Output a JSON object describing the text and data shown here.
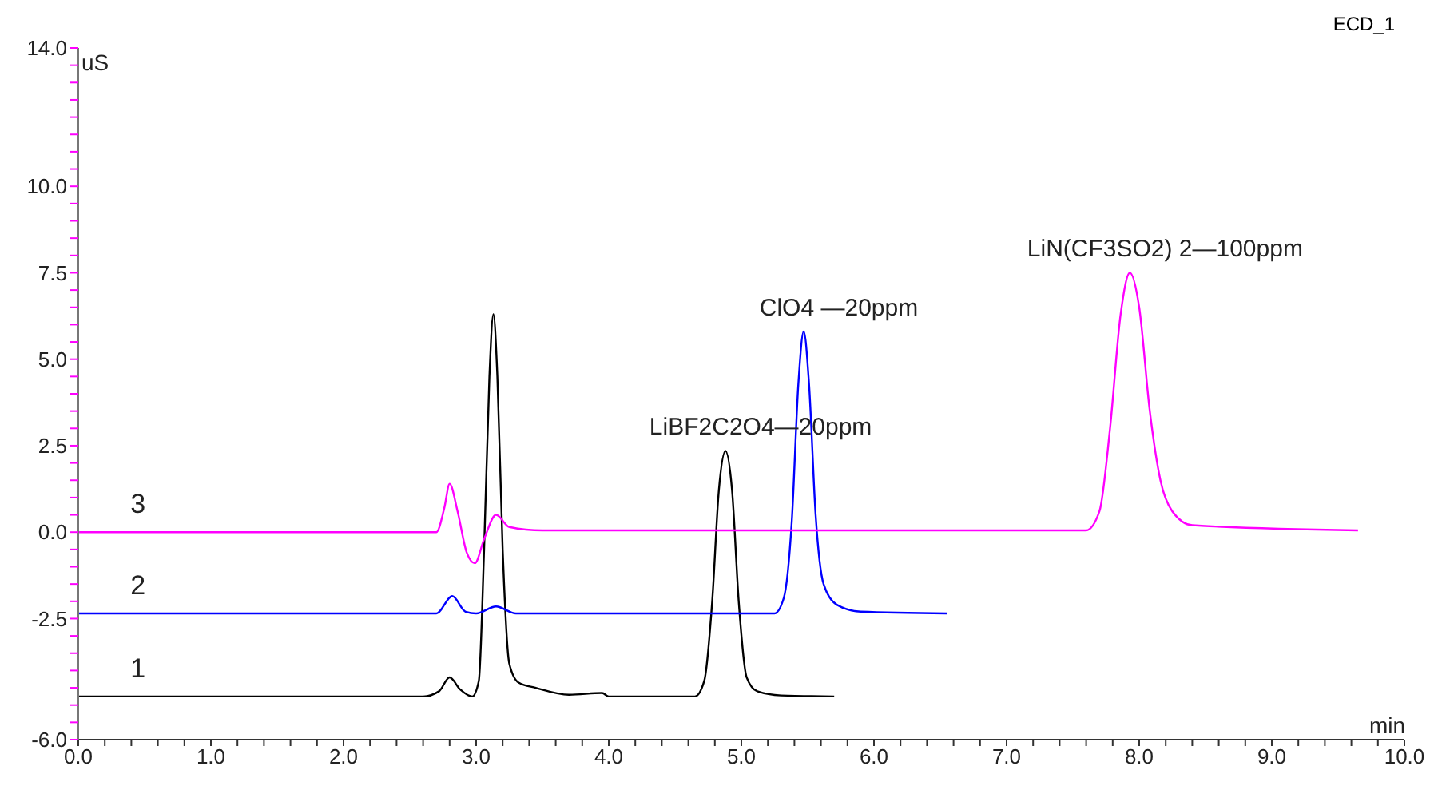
{
  "chart_data": {
    "type": "line",
    "title": "ECD_1",
    "xlabel": "min",
    "ylabel": "uS",
    "xlim": [
      0,
      10
    ],
    "ylim": [
      -6,
      14
    ],
    "xticks": [
      {
        "value": 0,
        "label": "0.0"
      },
      {
        "value": 0.2,
        "label": null
      },
      {
        "value": 0.4,
        "label": null
      },
      {
        "value": 0.6,
        "label": null
      },
      {
        "value": 0.8,
        "label": null
      },
      {
        "value": 1,
        "label": "1.0"
      },
      {
        "value": 1.2,
        "label": null
      },
      {
        "value": 1.4,
        "label": null
      },
      {
        "value": 1.6,
        "label": null
      },
      {
        "value": 1.8,
        "label": null
      },
      {
        "value": 2,
        "label": "2.0"
      },
      {
        "value": 2.2,
        "label": null
      },
      {
        "value": 2.4,
        "label": null
      },
      {
        "value": 2.6,
        "label": null
      },
      {
        "value": 2.8,
        "label": null
      },
      {
        "value": 3,
        "label": "3.0"
      },
      {
        "value": 3.2,
        "label": null
      },
      {
        "value": 3.4,
        "label": null
      },
      {
        "value": 3.6,
        "label": null
      },
      {
        "value": 3.8,
        "label": null
      },
      {
        "value": 4,
        "label": "4.0"
      },
      {
        "value": 4.2,
        "label": null
      },
      {
        "value": 4.4,
        "label": null
      },
      {
        "value": 4.6,
        "label": null
      },
      {
        "value": 4.8,
        "label": null
      },
      {
        "value": 5,
        "label": "5.0"
      },
      {
        "value": 5.2,
        "label": null
      },
      {
        "value": 5.4,
        "label": null
      },
      {
        "value": 5.6,
        "label": null
      },
      {
        "value": 5.8,
        "label": null
      },
      {
        "value": 6,
        "label": "6.0"
      },
      {
        "value": 6.2,
        "label": null
      },
      {
        "value": 6.4,
        "label": null
      },
      {
        "value": 6.6,
        "label": null
      },
      {
        "value": 6.8,
        "label": null
      },
      {
        "value": 7,
        "label": "7.0"
      },
      {
        "value": 7.2,
        "label": null
      },
      {
        "value": 7.4,
        "label": null
      },
      {
        "value": 7.6,
        "label": null
      },
      {
        "value": 7.8,
        "label": null
      },
      {
        "value": 8,
        "label": "8.0"
      },
      {
        "value": 8.2,
        "label": null
      },
      {
        "value": 8.4,
        "label": null
      },
      {
        "value": 8.6,
        "label": null
      },
      {
        "value": 8.8,
        "label": null
      },
      {
        "value": 9,
        "label": "9.0"
      },
      {
        "value": 9.2,
        "label": null
      },
      {
        "value": 9.4,
        "label": null
      },
      {
        "value": 9.6,
        "label": null
      },
      {
        "value": 9.8,
        "label": null
      },
      {
        "value": 10,
        "label": "10.0"
      }
    ],
    "yticks": [
      {
        "value": -6,
        "label": "-6.0"
      },
      {
        "value": -5.5,
        "label": null
      },
      {
        "value": -5,
        "label": null
      },
      {
        "value": -4.5,
        "label": null
      },
      {
        "value": -4,
        "label": null
      },
      {
        "value": -3.5,
        "label": null
      },
      {
        "value": -3,
        "label": null
      },
      {
        "value": -2.5,
        "label": "-2.5"
      },
      {
        "value": -2,
        "label": null
      },
      {
        "value": -1.5,
        "label": null
      },
      {
        "value": -1,
        "label": null
      },
      {
        "value": -0.5,
        "label": null
      },
      {
        "value": 0,
        "label": "0.0"
      },
      {
        "value": 0.5,
        "label": null
      },
      {
        "value": 1,
        "label": null
      },
      {
        "value": 1.5,
        "label": null
      },
      {
        "value": 2,
        "label": null
      },
      {
        "value": 2.5,
        "label": "2.5"
      },
      {
        "value": 3,
        "label": null
      },
      {
        "value": 3.5,
        "label": null
      },
      {
        "value": 4,
        "label": null
      },
      {
        "value": 4.5,
        "label": null
      },
      {
        "value": 5,
        "label": "5.0"
      },
      {
        "value": 5.5,
        "label": null
      },
      {
        "value": 6,
        "label": null
      },
      {
        "value": 6.5,
        "label": null
      },
      {
        "value": 7,
        "label": null
      },
      {
        "value": 7.5,
        "label": "7.5"
      },
      {
        "value": 8,
        "label": null
      },
      {
        "value": 8.5,
        "label": null
      },
      {
        "value": 9,
        "label": null
      },
      {
        "value": 9.5,
        "label": null
      },
      {
        "value": 10,
        "label": "10.0"
      },
      {
        "value": 10.5,
        "label": null
      },
      {
        "value": 11,
        "label": null
      },
      {
        "value": 11.5,
        "label": null
      },
      {
        "value": 12,
        "label": null
      },
      {
        "value": 12.5,
        "label": null
      },
      {
        "value": 13,
        "label": null
      },
      {
        "value": 13.5,
        "label": null
      },
      {
        "value": 14,
        "label": "14.0"
      }
    ],
    "marker": "none",
    "line_style": "solid",
    "series": [
      {
        "name": "1",
        "color": "#000000",
        "x": [
          0,
          2.6,
          2.72,
          2.8,
          2.88,
          2.97,
          3.02,
          3.06,
          3.1,
          3.13,
          3.16,
          3.2,
          3.25,
          3.32,
          3.45,
          3.7,
          3.95,
          4.0,
          4.65,
          4.72,
          4.78,
          4.83,
          4.88,
          4.93,
          4.98,
          5.04,
          5.12,
          5.3,
          5.7
        ],
        "values": [
          -4.75,
          -4.75,
          -4.6,
          -4.2,
          -4.55,
          -4.75,
          -4.3,
          -0.5,
          4.5,
          6.3,
          4.5,
          -0.5,
          -3.8,
          -4.35,
          -4.5,
          -4.7,
          -4.65,
          -4.75,
          -4.75,
          -4.3,
          -2.0,
          1.2,
          2.35,
          1.2,
          -2.0,
          -4.2,
          -4.6,
          -4.72,
          -4.75
        ]
      },
      {
        "name": "2",
        "color": "#0000ff",
        "x": [
          0,
          2.7,
          2.82,
          2.92,
          3.0,
          3.15,
          3.3,
          5.25,
          5.32,
          5.38,
          5.43,
          5.47,
          5.51,
          5.56,
          5.62,
          5.72,
          5.9,
          6.55
        ],
        "values": [
          -2.35,
          -2.35,
          -1.85,
          -2.3,
          -2.35,
          -2.15,
          -2.35,
          -2.35,
          -1.9,
          0.3,
          4.3,
          5.8,
          4.3,
          0.5,
          -1.5,
          -2.1,
          -2.3,
          -2.35
        ]
      },
      {
        "name": "3",
        "color": "#ff00ff",
        "x": [
          0,
          2.7,
          2.76,
          2.8,
          2.86,
          2.93,
          2.99,
          3.06,
          3.15,
          3.25,
          3.5,
          7.6,
          7.7,
          7.78,
          7.86,
          7.93,
          8.0,
          8.08,
          8.16,
          8.25,
          8.4,
          9.65
        ],
        "values": [
          0.0,
          0.0,
          0.7,
          1.4,
          0.6,
          -0.6,
          -0.9,
          -0.2,
          0.5,
          0.15,
          0.05,
          0.05,
          0.6,
          3.0,
          6.3,
          7.5,
          6.5,
          3.5,
          1.5,
          0.6,
          0.2,
          0.05
        ]
      }
    ],
    "annotations": [
      {
        "text": "LiBF2C2O4—20ppm",
        "x": 4.88,
        "y": 2.35
      },
      {
        "text": "ClO4 —20ppm",
        "x": 5.47,
        "y": 5.8
      },
      {
        "text": "LiN(CF3SO2) 2—100ppm",
        "x": 7.93,
        "y": 7.5
      }
    ]
  }
}
